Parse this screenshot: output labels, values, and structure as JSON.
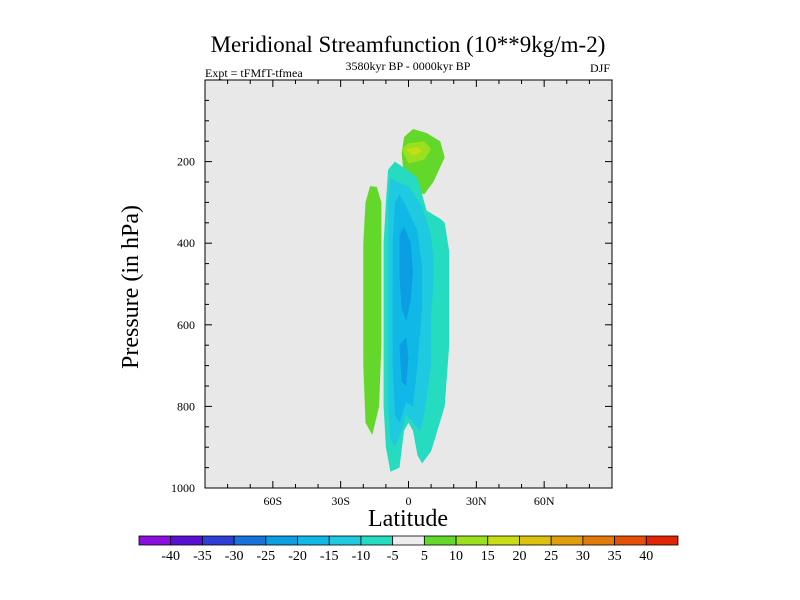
{
  "chart_data": {
    "type": "contour",
    "title": "Meridional Streamfunction (10**9kg/m-2)",
    "left_string": "Expt = tFMfT-tfmea",
    "center_string": "3580kyr BP - 0000kyr BP",
    "right_string": "DJF",
    "xlabel": "Latitude",
    "ylabel": "Pressure (in hPa)",
    "xlim": [
      -90,
      90
    ],
    "ylim": [
      1000,
      0
    ],
    "x_ticks": [
      {
        "value": -60,
        "label": "60S"
      },
      {
        "value": -30,
        "label": "30S"
      },
      {
        "value": 0,
        "label": "0"
      },
      {
        "value": 30,
        "label": "30N"
      },
      {
        "value": 60,
        "label": "60N"
      }
    ],
    "y_ticks": [
      {
        "value": 200,
        "label": "200"
      },
      {
        "value": 400,
        "label": "400"
      },
      {
        "value": 600,
        "label": "600"
      },
      {
        "value": 800,
        "label": "800"
      },
      {
        "value": 1000,
        "label": "1000"
      }
    ],
    "colorbar": {
      "labels": [
        "-40",
        "-35",
        "-30",
        "-25",
        "-20",
        "-15",
        "-10",
        "-5",
        "5",
        "10",
        "15",
        "20",
        "25",
        "30",
        "35",
        "40"
      ],
      "colors": [
        "#8a0fe0",
        "#5a10d4",
        "#2e3fd6",
        "#1673dc",
        "#0b9ee2",
        "#10b8e8",
        "#1fcae0",
        "#26dcc0",
        "#ededed",
        "#63d82a",
        "#9be01e",
        "#c9dd14",
        "#dcc20e",
        "#e09e0c",
        "#e27a08",
        "#e45006",
        "#e02404"
      ]
    },
    "contours": [
      {
        "name": "positive-10-region-west",
        "level": "10",
        "color": "#63d82a",
        "points": [
          [
            -17,
            260
          ],
          [
            -14,
            262
          ],
          [
            -12,
            300
          ],
          [
            -12,
            650
          ],
          [
            -13,
            800
          ],
          [
            -16,
            870
          ],
          [
            -19,
            840
          ],
          [
            -20,
            700
          ],
          [
            -20,
            400
          ],
          [
            -19,
            300
          ]
        ]
      },
      {
        "name": "positive-10-region-upper",
        "level": "10",
        "color": "#63d82a",
        "points": [
          [
            -3,
            180
          ],
          [
            -2,
            140
          ],
          [
            2,
            120
          ],
          [
            8,
            130
          ],
          [
            14,
            150
          ],
          [
            16,
            190
          ],
          [
            11,
            250
          ],
          [
            7,
            280
          ],
          [
            1,
            270
          ],
          [
            -2,
            240
          ]
        ]
      },
      {
        "name": "positive-15-core-upper",
        "level": "15",
        "color": "#9be01e",
        "points": [
          [
            -3,
            170
          ],
          [
            0,
            155
          ],
          [
            7,
            150
          ],
          [
            10,
            170
          ],
          [
            7,
            195
          ],
          [
            0,
            205
          ]
        ]
      },
      {
        "name": "positive-20-core-upper",
        "level": "20",
        "color": "#c9dd14",
        "points": [
          [
            -1,
            170
          ],
          [
            4,
            165
          ],
          [
            6,
            175
          ],
          [
            2,
            185
          ]
        ]
      },
      {
        "name": "negative-5-envelope",
        "level": "-5",
        "color": "#26dcc0",
        "points": [
          [
            -9,
            220
          ],
          [
            -6,
            200
          ],
          [
            -2,
            215
          ],
          [
            4,
            240
          ],
          [
            8,
            320
          ],
          [
            14,
            340
          ],
          [
            16,
            350
          ],
          [
            18,
            420
          ],
          [
            18,
            650
          ],
          [
            16,
            800
          ],
          [
            10,
            910
          ],
          [
            6,
            940
          ],
          [
            4,
            920
          ],
          [
            2,
            860
          ],
          [
            0,
            840
          ],
          [
            -2,
            860
          ],
          [
            -4,
            950
          ],
          [
            -8,
            960
          ],
          [
            -10,
            900
          ],
          [
            -11,
            800
          ],
          [
            -11,
            400
          ],
          [
            -10,
            300
          ]
        ]
      },
      {
        "name": "negative-10-region",
        "level": "-10",
        "color": "#1fcae0",
        "points": [
          [
            -8,
            240
          ],
          [
            -5,
            250
          ],
          [
            0,
            260
          ],
          [
            6,
            310
          ],
          [
            10,
            380
          ],
          [
            11,
            440
          ],
          [
            11,
            500
          ],
          [
            10,
            580
          ],
          [
            10,
            700
          ],
          [
            7,
            820
          ],
          [
            5,
            860
          ],
          [
            2,
            840
          ],
          [
            -1,
            820
          ],
          [
            -3,
            860
          ],
          [
            -6,
            900
          ],
          [
            -8,
            880
          ],
          [
            -9,
            800
          ],
          [
            -9,
            300
          ]
        ]
      },
      {
        "name": "negative-15-region",
        "level": "-15",
        "color": "#10b8e8",
        "points": [
          [
            -6,
            300
          ],
          [
            -4,
            280
          ],
          [
            -1,
            310
          ],
          [
            4,
            370
          ],
          [
            6,
            460
          ],
          [
            6,
            560
          ],
          [
            4,
            700
          ],
          [
            2,
            800
          ],
          [
            -1,
            790
          ],
          [
            -4,
            840
          ],
          [
            -6,
            820
          ],
          [
            -7,
            700
          ],
          [
            -7,
            400
          ]
        ]
      },
      {
        "name": "negative-20-core",
        "level": "-20",
        "color": "#0b9ee2",
        "points": [
          [
            -4,
            380
          ],
          [
            -2,
            360
          ],
          [
            1,
            400
          ],
          [
            2,
            470
          ],
          [
            1,
            540
          ],
          [
            -1,
            590
          ],
          [
            -3,
            560
          ],
          [
            -4,
            480
          ]
        ]
      },
      {
        "name": "negative-20-lower-core",
        "level": "-20",
        "color": "#0b9ee2",
        "points": [
          [
            -4,
            650
          ],
          [
            -1,
            630
          ],
          [
            0,
            680
          ],
          [
            -1,
            750
          ],
          [
            -3,
            740
          ]
        ]
      }
    ]
  }
}
